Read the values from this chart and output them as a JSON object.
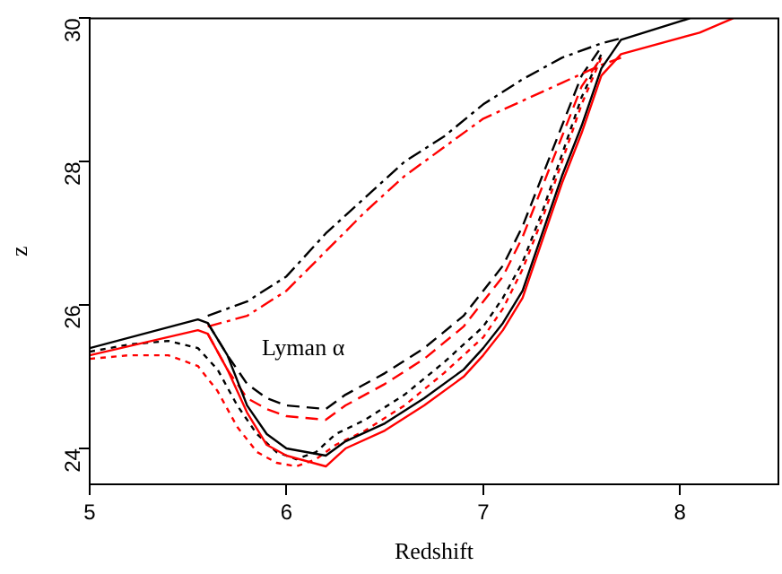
{
  "chart_data": {
    "type": "line",
    "xlabel": "Redshift",
    "ylabel": "z",
    "xlim": [
      5,
      8.5
    ],
    "xticks": [
      5,
      6,
      7,
      8
    ],
    "ylim": [
      23.5,
      30
    ],
    "yticks": [
      24,
      26,
      28,
      30
    ],
    "grid": false,
    "legend": false,
    "marker": "none",
    "annotations": [
      "Lyman α"
    ],
    "series": [
      {
        "color": "#000000",
        "line_style": "solid",
        "x": [
          5,
          5.55,
          5.6,
          5.7,
          5.8,
          5.9,
          6.0,
          6.2,
          6.3,
          6.5,
          6.7,
          6.9,
          7.0,
          7.1,
          7.2,
          7.3,
          7.4,
          7.5,
          7.55,
          7.6,
          7.7,
          8.05
        ],
        "values": [
          25.4,
          25.8,
          25.75,
          25.3,
          24.6,
          24.2,
          24.0,
          23.9,
          24.1,
          24.35,
          24.7,
          25.1,
          25.4,
          25.75,
          26.2,
          27.0,
          27.8,
          28.5,
          28.9,
          29.3,
          29.7,
          30
        ]
      },
      {
        "color": "#ff0000",
        "line_style": "solid",
        "x": [
          5,
          5.55,
          5.6,
          5.7,
          5.8,
          5.9,
          6.0,
          6.2,
          6.3,
          6.5,
          6.7,
          6.9,
          7.0,
          7.1,
          7.2,
          7.3,
          7.4,
          7.5,
          7.6,
          7.7,
          8.1,
          8.27
        ],
        "values": [
          25.3,
          25.65,
          25.6,
          25.1,
          24.5,
          24.05,
          23.9,
          23.75,
          24.0,
          24.25,
          24.6,
          25.0,
          25.3,
          25.65,
          26.1,
          26.9,
          27.7,
          28.4,
          29.2,
          29.5,
          29.8,
          30
        ]
      },
      {
        "color": "#000000",
        "line_style": "dashdot",
        "x": [
          5.6,
          5.8,
          6.0,
          6.2,
          6.4,
          6.6,
          6.8,
          7.0,
          7.2,
          7.4,
          7.6,
          7.7
        ],
        "values": [
          25.85,
          26.05,
          26.4,
          27.0,
          27.5,
          28.0,
          28.35,
          28.8,
          29.15,
          29.45,
          29.65,
          29.72
        ]
      },
      {
        "color": "#ff0000",
        "line_style": "dashdot",
        "x": [
          5.6,
          5.8,
          6.0,
          6.2,
          6.4,
          6.6,
          6.8,
          7.0,
          7.2,
          7.4,
          7.6,
          7.7
        ],
        "values": [
          25.7,
          25.85,
          26.2,
          26.75,
          27.3,
          27.8,
          28.2,
          28.6,
          28.85,
          29.1,
          29.35,
          29.45
        ]
      },
      {
        "color": "#000000",
        "line_style": "dashed",
        "x": [
          5.6,
          5.7,
          5.8,
          5.9,
          6.0,
          6.2,
          6.3,
          6.5,
          6.7,
          6.9,
          7.0,
          7.1,
          7.2,
          7.3,
          7.4,
          7.5,
          7.6
        ],
        "values": [
          25.75,
          25.3,
          24.9,
          24.7,
          24.6,
          24.55,
          24.75,
          25.05,
          25.4,
          25.85,
          26.2,
          26.55,
          27.1,
          27.8,
          28.5,
          29.2,
          29.6
        ]
      },
      {
        "color": "#ff0000",
        "line_style": "dashed",
        "x": [
          5.6,
          5.7,
          5.8,
          5.9,
          6.0,
          6.2,
          6.3,
          6.5,
          6.7,
          6.9,
          7.0,
          7.1,
          7.2,
          7.3,
          7.4,
          7.5,
          7.6
        ],
        "values": [
          25.6,
          25.1,
          24.7,
          24.55,
          24.45,
          24.4,
          24.6,
          24.9,
          25.25,
          25.7,
          26.05,
          26.4,
          26.95,
          27.65,
          28.35,
          29.05,
          29.45
        ]
      },
      {
        "color": "#000000",
        "line_style": "dotted",
        "x": [
          5.0,
          5.2,
          5.4,
          5.55,
          5.65,
          5.75,
          5.85,
          5.95,
          6.05,
          6.15,
          6.25,
          6.4,
          6.6,
          6.8,
          7.0,
          7.1,
          7.2,
          7.3,
          7.4,
          7.5,
          7.6
        ],
        "values": [
          25.35,
          25.45,
          25.5,
          25.4,
          25.1,
          24.6,
          24.2,
          23.95,
          23.85,
          23.95,
          24.2,
          24.4,
          24.75,
          25.2,
          25.7,
          26.1,
          26.6,
          27.3,
          28.1,
          28.9,
          29.5
        ]
      },
      {
        "color": "#ff0000",
        "line_style": "dotted",
        "x": [
          5.0,
          5.2,
          5.4,
          5.55,
          5.65,
          5.75,
          5.85,
          5.95,
          6.05,
          6.15,
          6.25,
          6.4,
          6.6,
          6.8,
          7.0,
          7.1,
          7.2,
          7.3,
          7.4,
          7.5,
          7.6
        ],
        "values": [
          25.25,
          25.3,
          25.3,
          25.15,
          24.8,
          24.3,
          23.95,
          23.8,
          23.75,
          23.85,
          24.05,
          24.25,
          24.6,
          25.05,
          25.55,
          25.95,
          26.5,
          27.2,
          28.0,
          28.8,
          29.45
        ]
      }
    ]
  }
}
